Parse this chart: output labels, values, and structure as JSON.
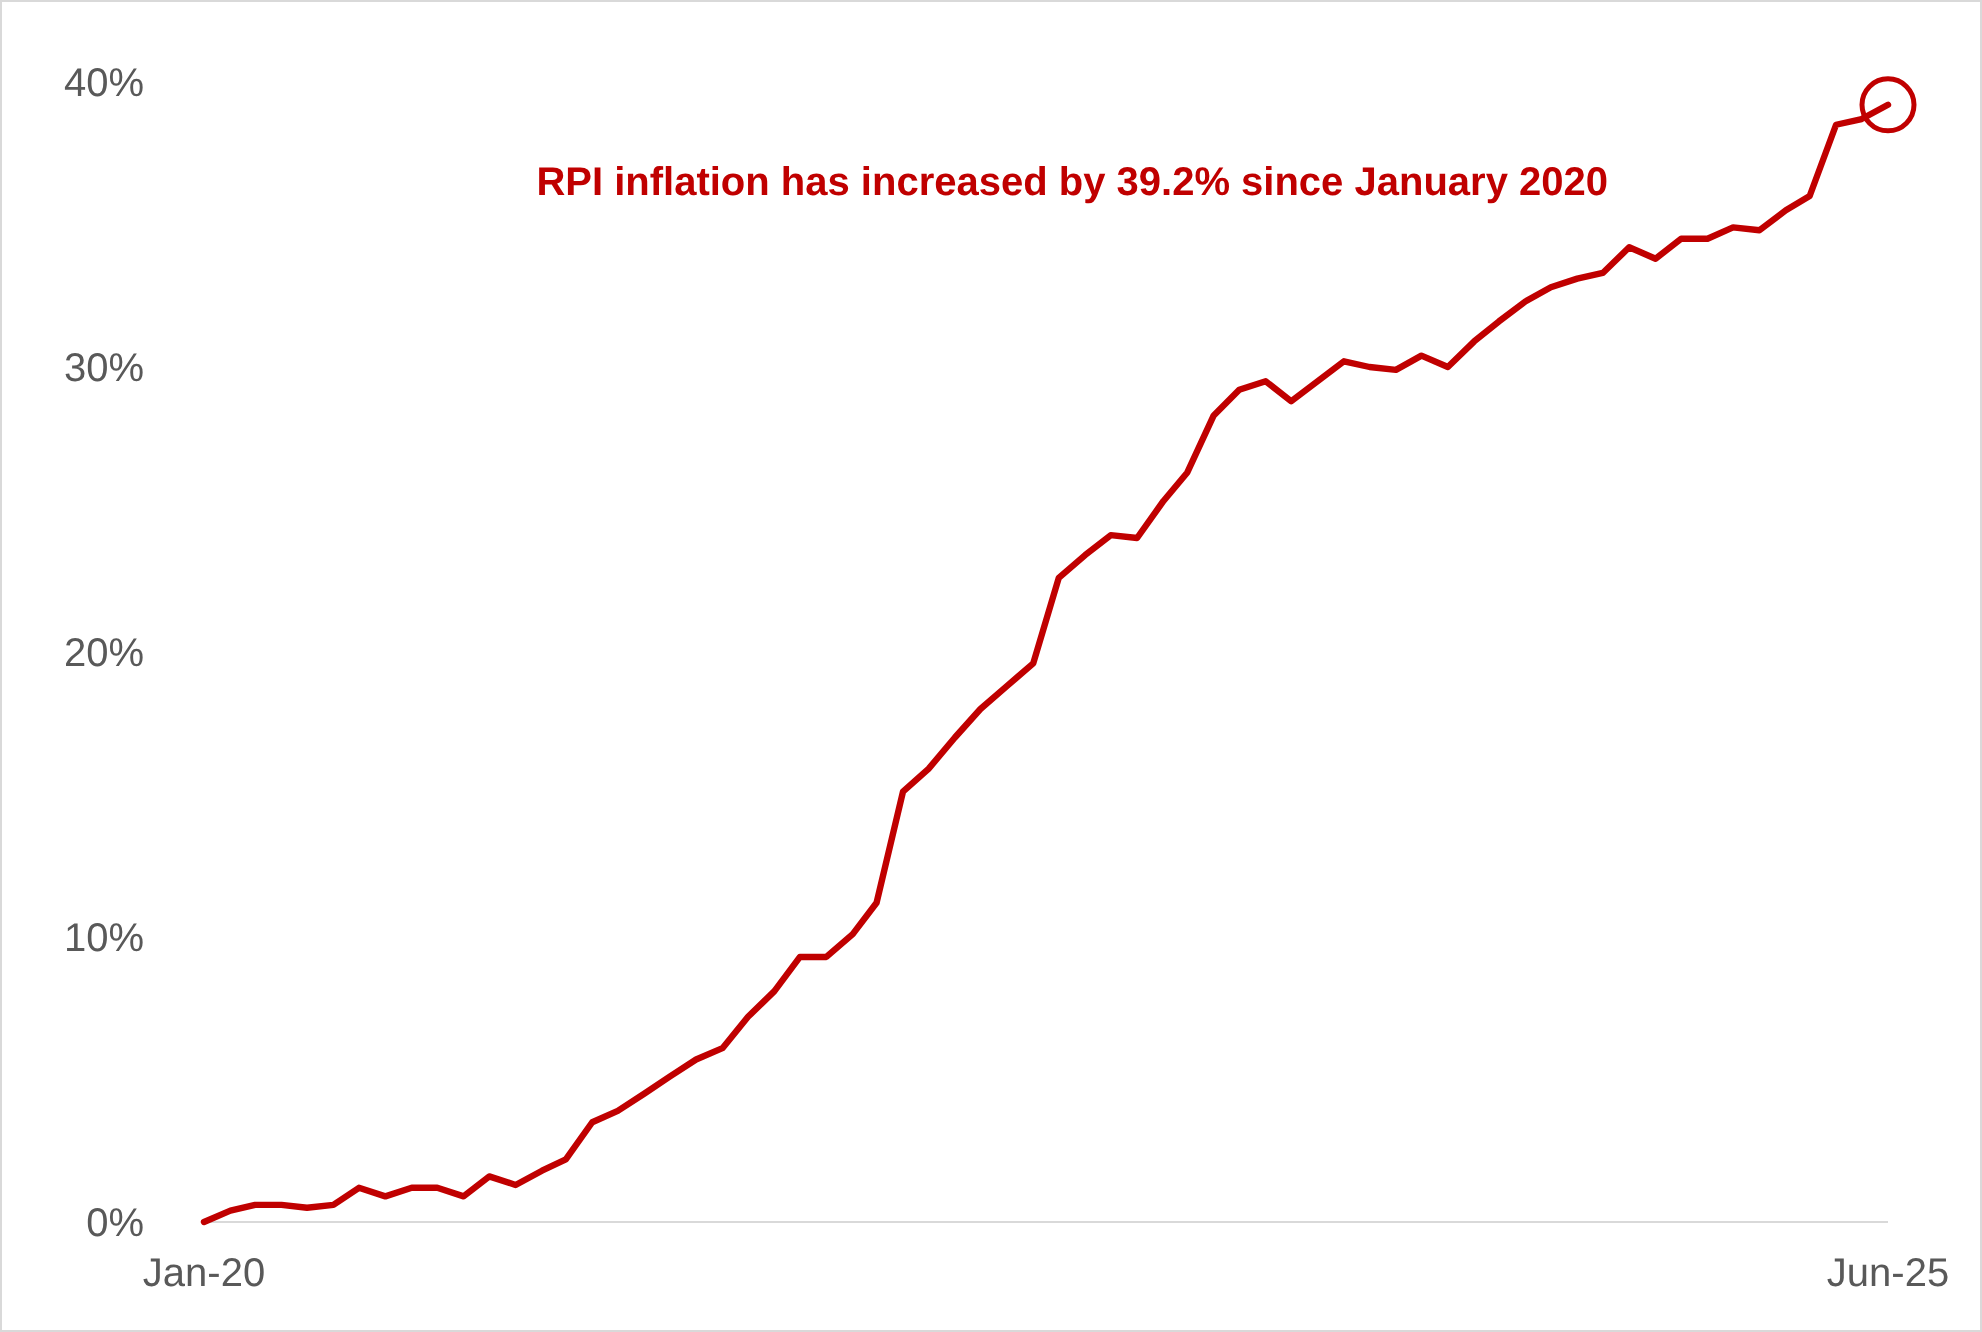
{
  "chart_data": {
    "type": "line",
    "x": [
      "2020-01",
      "2020-02",
      "2020-03",
      "2020-04",
      "2020-05",
      "2020-06",
      "2020-07",
      "2020-08",
      "2020-09",
      "2020-10",
      "2020-11",
      "2020-12",
      "2021-01",
      "2021-02",
      "2021-03",
      "2021-04",
      "2021-05",
      "2021-06",
      "2021-07",
      "2021-08",
      "2021-09",
      "2021-10",
      "2021-11",
      "2021-12",
      "2022-01",
      "2022-02",
      "2022-03",
      "2022-04",
      "2022-05",
      "2022-06",
      "2022-07",
      "2022-08",
      "2022-09",
      "2022-10",
      "2022-11",
      "2022-12",
      "2023-01",
      "2023-02",
      "2023-03",
      "2023-04",
      "2023-05",
      "2023-06",
      "2023-07",
      "2023-08",
      "2023-09",
      "2023-10",
      "2023-11",
      "2023-12",
      "2024-01",
      "2024-02",
      "2024-03",
      "2024-04",
      "2024-05",
      "2024-06",
      "2024-07",
      "2024-08",
      "2024-09",
      "2024-10",
      "2024-11",
      "2024-12",
      "2025-01",
      "2025-02",
      "2025-03",
      "2025-04",
      "2025-05",
      "2025-06"
    ],
    "series": [
      {
        "color": "#c00000",
        "values": [
          0,
          0.4,
          0.6,
          0.6,
          0.5,
          0.6,
          1.2,
          0.9,
          1.2,
          1.2,
          0.9,
          1.6,
          1.3,
          1.8,
          2.2,
          3.5,
          3.9,
          4.5,
          5.1,
          5.7,
          6.1,
          7.2,
          8.1,
          9.3,
          9.3,
          10.1,
          11.2,
          15.1,
          15.9,
          17.0,
          18.0,
          18.8,
          19.6,
          22.6,
          23.4,
          24.1,
          24.0,
          25.3,
          26.3,
          28.3,
          29.2,
          29.5,
          28.8,
          29.5,
          30.2,
          30.0,
          29.9,
          30.4,
          30.0,
          30.9,
          31.6,
          32.3,
          32.8,
          33.1,
          33.3,
          34.2,
          33.8,
          34.5,
          34.5,
          34.9,
          34.8,
          35.5,
          36.0,
          38.5,
          38.7,
          39.2
        ]
      }
    ],
    "xlim": [
      "2020-01",
      "2025-06"
    ],
    "xticks": [
      {
        "value": "2020-01",
        "label": "Jan-20"
      },
      {
        "value": "2025-06",
        "label": "Jun-25"
      }
    ],
    "ylim": [
      0,
      40
    ],
    "yticks": [
      {
        "value": 0,
        "label": "0%"
      },
      {
        "value": 10,
        "label": "10%"
      },
      {
        "value": 20,
        "label": "20%"
      },
      {
        "value": 30,
        "label": "30%"
      },
      {
        "value": 40,
        "label": "40%"
      }
    ],
    "grid": false,
    "marker": "none",
    "line_style": "solid",
    "annotations": [
      "RPI inflation has increased by 39.2% since January 2020"
    ]
  }
}
